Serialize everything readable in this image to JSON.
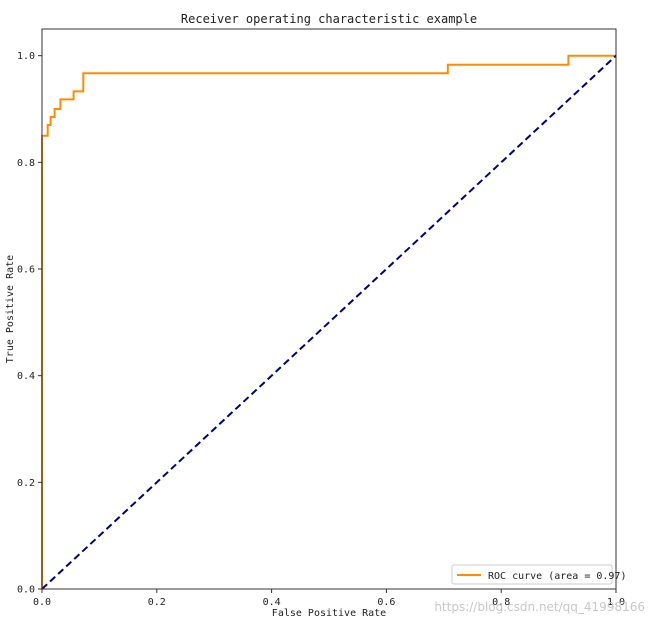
{
  "watermark": "https://blog.csdn.net/qq_41998166",
  "colors": {
    "roc": "#ff8c00",
    "diagonal": "#000080",
    "axes": "#333333"
  },
  "chart_data": {
    "type": "line",
    "title": "Receiver operating characteristic example",
    "xlabel": "False Positive Rate",
    "ylabel": "True Positive Rate",
    "xlim": [
      0.0,
      1.0
    ],
    "ylim": [
      0.0,
      1.05
    ],
    "xticks": [
      "0.0",
      "0.2",
      "0.4",
      "0.6",
      "0.8",
      "1.0"
    ],
    "yticks": [
      "0.0",
      "0.2",
      "0.4",
      "0.6",
      "0.8",
      "1.0"
    ],
    "grid": false,
    "legend_position": "lower-right",
    "series": [
      {
        "name": "ROC curve (area = 0.97)",
        "style": "solid",
        "color": "#ff8c00",
        "x": [
          0.0,
          0.0,
          0.0,
          0.0,
          0.01,
          0.01,
          0.015,
          0.015,
          0.022,
          0.022,
          0.032,
          0.032,
          0.055,
          0.055,
          0.072,
          0.072,
          0.707,
          0.707,
          0.917,
          0.917,
          1.0
        ],
        "y": [
          0.0,
          0.8,
          0.8,
          0.85,
          0.85,
          0.87,
          0.87,
          0.885,
          0.885,
          0.9,
          0.9,
          0.918,
          0.918,
          0.933,
          0.933,
          0.967,
          0.967,
          0.983,
          0.983,
          1.0,
          1.0
        ]
      },
      {
        "name": "",
        "style": "dashed",
        "color": "#000080",
        "x": [
          0.0,
          1.0
        ],
        "y": [
          0.0,
          1.0
        ]
      }
    ]
  }
}
